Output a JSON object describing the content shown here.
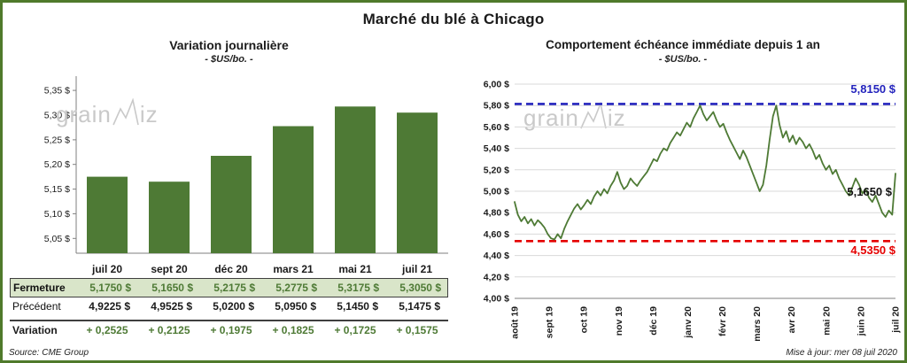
{
  "page": {
    "title": "Marché du blé à Chicago",
    "source": "Source: CME Group",
    "updated": "Mise à jour: mer 08 juil 2020",
    "watermark_pre": "grain",
    "watermark_post": "iz"
  },
  "colors": {
    "green": "#4e7a35",
    "blue": "#2424bd",
    "red": "#e50000",
    "grid": "#d9d9d9",
    "axis": "#7f7f7f",
    "row_bg": "#d9e5c9"
  },
  "chart_data": [
    {
      "type": "bar",
      "title": "Variation journalière",
      "subtitle": "- $US/bo. -",
      "categories": [
        "juil 20",
        "sept 20",
        "déc 20",
        "mars 21",
        "mai 21",
        "juil 21"
      ],
      "values": [
        5.175,
        5.165,
        5.2175,
        5.2775,
        5.3175,
        5.305
      ],
      "ylim": [
        5.02,
        5.37
      ],
      "yticks": [
        5.05,
        5.1,
        5.15,
        5.2,
        5.25,
        5.3,
        5.35
      ],
      "ytick_labels": [
        "5,05 $",
        "5,10 $",
        "5,15 $",
        "5,20 $",
        "5,25 $",
        "5,30 $",
        "5,35 $"
      ],
      "grid": false,
      "legend": "none"
    },
    {
      "type": "line",
      "title": "Comportement échéance immédiate depuis 1 an",
      "subtitle": "- $US/bo. -",
      "x_labels": [
        "août 19",
        "sept 19",
        "oct 19",
        "nov 19",
        "déc 19",
        "janv 20",
        "févr 20",
        "mars 20",
        "avr 20",
        "mai 20",
        "juin 20",
        "juil 20"
      ],
      "values": [
        4.9,
        4.78,
        4.72,
        4.76,
        4.7,
        4.74,
        4.68,
        4.73,
        4.7,
        4.66,
        4.6,
        4.56,
        4.55,
        4.6,
        4.56,
        4.65,
        4.72,
        4.78,
        4.84,
        4.88,
        4.83,
        4.87,
        4.92,
        4.88,
        4.95,
        5.0,
        4.96,
        5.02,
        4.98,
        5.05,
        5.1,
        5.18,
        5.08,
        5.02,
        5.05,
        5.12,
        5.08,
        5.05,
        5.1,
        5.14,
        5.18,
        5.24,
        5.3,
        5.28,
        5.35,
        5.4,
        5.38,
        5.45,
        5.5,
        5.55,
        5.52,
        5.58,
        5.64,
        5.6,
        5.68,
        5.74,
        5.8,
        5.72,
        5.66,
        5.7,
        5.74,
        5.66,
        5.6,
        5.63,
        5.55,
        5.48,
        5.42,
        5.36,
        5.3,
        5.38,
        5.32,
        5.24,
        5.16,
        5.08,
        5.0,
        5.06,
        5.24,
        5.48,
        5.7,
        5.8,
        5.62,
        5.5,
        5.56,
        5.46,
        5.52,
        5.44,
        5.5,
        5.46,
        5.4,
        5.44,
        5.38,
        5.3,
        5.34,
        5.26,
        5.2,
        5.24,
        5.16,
        5.2,
        5.12,
        5.06,
        5.0,
        4.96,
        5.04,
        5.12,
        5.06,
        4.98,
        5.02,
        4.94,
        4.9,
        4.96,
        4.88,
        4.8,
        4.76,
        4.82,
        4.78,
        5.165
      ],
      "ylim": [
        4.0,
        6.0
      ],
      "yticks": [
        6.0,
        5.8,
        5.6,
        5.4,
        5.2,
        5.0,
        4.8,
        4.6,
        4.4,
        4.2,
        4.0
      ],
      "ytick_labels": [
        "6,00 $",
        "5,80 $",
        "5,60 $",
        "5,40 $",
        "5,20 $",
        "5,00 $",
        "4,80 $",
        "4,60 $",
        "4,40 $",
        "4,20 $",
        "4,00 $"
      ],
      "grid": true,
      "legend": "none",
      "annotations": {
        "high": {
          "value": 5.815,
          "label": "5,8150 $"
        },
        "low": {
          "value": 4.535,
          "label": "4,5350 $"
        },
        "last": {
          "value": 5.165,
          "label": "5,1650 $"
        }
      }
    }
  ],
  "table": {
    "rows": [
      {
        "label": "Fermeture",
        "values": [
          "5,1750 $",
          "5,1650 $",
          "5,2175 $",
          "5,2775 $",
          "5,3175 $",
          "5,3050 $"
        ]
      },
      {
        "label": "Précédent",
        "values": [
          "4,9225 $",
          "4,9525 $",
          "5,0200 $",
          "5,0950 $",
          "5,1450 $",
          "5,1475 $"
        ]
      },
      {
        "label": "Variation",
        "values": [
          "+ 0,2525",
          "+ 0,2125",
          "+ 0,1975",
          "+ 0,1825",
          "+ 0,1725",
          "+ 0,1575"
        ]
      }
    ]
  }
}
